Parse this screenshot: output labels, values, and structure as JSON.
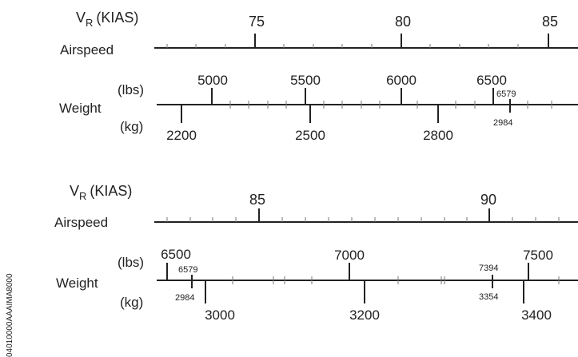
{
  "side_code": "04010000AAAIMA8000",
  "scales": [
    {
      "id": "top",
      "vr_label": "V",
      "vr_sub": "R",
      "vr_unit": "(KIAS)",
      "airspeed_label": "Airspeed",
      "weight_label": "Weight",
      "lbs_label": "(lbs)",
      "kg_label": "(kg)",
      "airspeed_ticks": [
        "75",
        "80",
        "85"
      ],
      "lbs_ticks": [
        "5000",
        "5500",
        "6000",
        "6500"
      ],
      "kg_ticks": [
        "2200",
        "2500",
        "2800"
      ],
      "marker_lbs": "6579",
      "marker_kg": "2984"
    },
    {
      "id": "bottom",
      "vr_label": "V",
      "vr_sub": "R",
      "vr_unit": "(KIAS)",
      "airspeed_label": "Airspeed",
      "weight_label": "Weight",
      "lbs_label": "(lbs)",
      "kg_label": "(kg)",
      "airspeed_ticks": [
        "85",
        "90"
      ],
      "lbs_ticks": [
        "6500",
        "7000",
        "7500"
      ],
      "kg_ticks": [
        "3000",
        "3200",
        "3400"
      ],
      "marker1_lbs": "6579",
      "marker1_kg": "2984",
      "marker2_lbs": "7394",
      "marker2_kg": "3354"
    }
  ]
}
